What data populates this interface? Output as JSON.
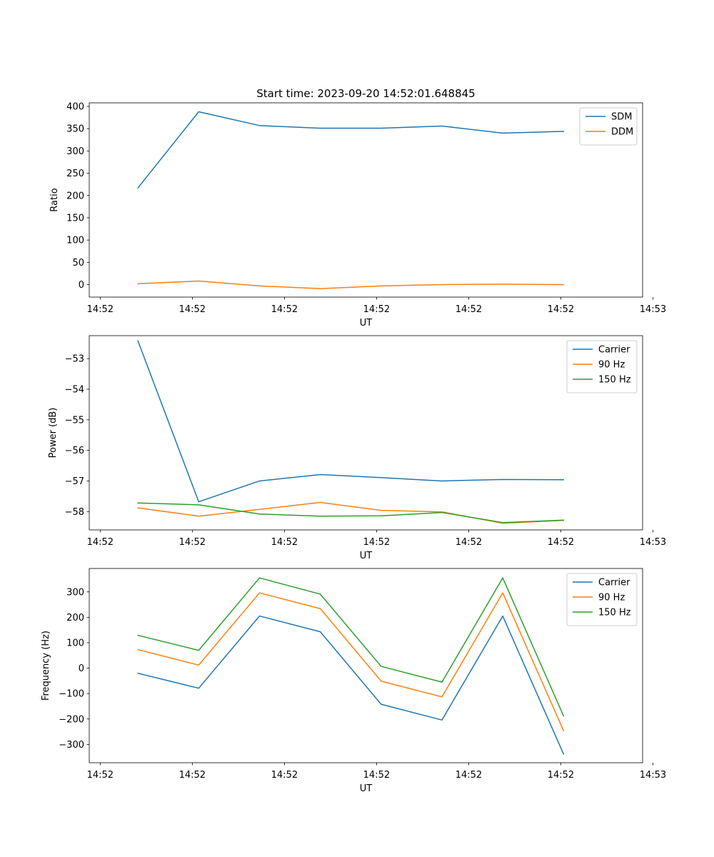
{
  "title": "Start time: 2023-09-20 14:52:01.648845",
  "chart_data": [
    {
      "type": "line",
      "title": "Start time: 2023-09-20 14:52:01.648845",
      "xlabel": "UT",
      "ylabel": "Ratio",
      "x": [
        1,
        2,
        3,
        4,
        5,
        6,
        7,
        8
      ],
      "xlim": [
        0.2,
        9.3
      ],
      "ylim": [
        -28,
        408
      ],
      "yticks": [
        0,
        50,
        100,
        150,
        200,
        250,
        300,
        350,
        400
      ],
      "xticks": [
        0.38,
        1.895,
        3.41,
        4.925,
        6.44,
        7.955,
        9.47
      ],
      "xticklabels": [
        "14:52",
        "14:52",
        "14:52",
        "14:52",
        "14:52",
        "14:52",
        "14:53"
      ],
      "legend": "top-right",
      "series": [
        {
          "name": "SDM",
          "color": "#1f77b4",
          "values": [
            217,
            388,
            357,
            351,
            351,
            356,
            340,
            344
          ]
        },
        {
          "name": "DDM",
          "color": "#ff7f0e",
          "values": [
            2,
            8,
            -3,
            -9,
            -3,
            0,
            1,
            0
          ]
        }
      ]
    },
    {
      "type": "line",
      "xlabel": "UT",
      "ylabel": "Power (dB)",
      "x": [
        1,
        2,
        3,
        4,
        5,
        6,
        7,
        8
      ],
      "xlim": [
        0.2,
        9.3
      ],
      "ylim": [
        -58.6,
        -52.25
      ],
      "yticks": [
        -58,
        -57,
        -56,
        -55,
        -54,
        -53
      ],
      "ytickformat": "minus",
      "xticks": [
        0.38,
        1.895,
        3.41,
        4.925,
        6.44,
        7.955,
        9.47
      ],
      "xticklabels": [
        "14:52",
        "14:52",
        "14:52",
        "14:52",
        "14:52",
        "14:52",
        "14:53"
      ],
      "legend": "top-right",
      "series": [
        {
          "name": "Carrier",
          "color": "#1f77b4",
          "values": [
            -52.42,
            -57.68,
            -57.0,
            -56.79,
            -56.89,
            -57.0,
            -56.95,
            -56.96
          ]
        },
        {
          "name": "90 Hz",
          "color": "#ff7f0e",
          "values": [
            -57.88,
            -58.15,
            -57.93,
            -57.7,
            -57.96,
            -58.01,
            -58.38,
            -58.29
          ]
        },
        {
          "name": "150 Hz",
          "color": "#2ca02c",
          "values": [
            -57.72,
            -57.78,
            -58.08,
            -58.15,
            -58.14,
            -58.03,
            -58.36,
            -58.28
          ]
        }
      ]
    },
    {
      "type": "line",
      "xlabel": "UT",
      "ylabel": "Frequency (Hz)",
      "x": [
        1,
        2,
        3,
        4,
        5,
        6,
        7,
        8
      ],
      "xlim": [
        0.2,
        9.3
      ],
      "ylim": [
        -372,
        392
      ],
      "yticks": [
        -300,
        -200,
        -100,
        0,
        100,
        200,
        300
      ],
      "ytickformat": "minus",
      "xticks": [
        0.38,
        1.895,
        3.41,
        4.925,
        6.44,
        7.955,
        9.47
      ],
      "xticklabels": [
        "14:52",
        "14:52",
        "14:52",
        "14:52",
        "14:52",
        "14:52",
        "14:53"
      ],
      "legend": "top-right",
      "series": [
        {
          "name": "Carrier",
          "color": "#1f77b4",
          "values": [
            -20,
            -79,
            205,
            143,
            -142,
            -204,
            205,
            -338
          ]
        },
        {
          "name": "90 Hz",
          "color": "#ff7f0e",
          "values": [
            73,
            12,
            296,
            234,
            -51,
            -113,
            296,
            -246
          ]
        },
        {
          "name": "150 Hz",
          "color": "#2ca02c",
          "values": [
            129,
            70,
            355,
            291,
            7,
            -55,
            355,
            -188
          ]
        }
      ]
    }
  ]
}
